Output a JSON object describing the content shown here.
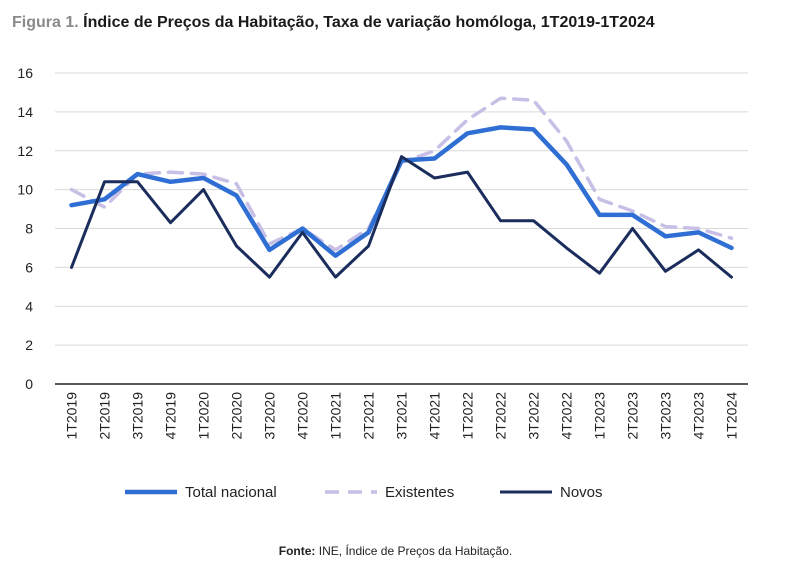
{
  "figure": {
    "label": "Figura 1.",
    "title": "Índice de Preços da Habitação, Taxa de variação homóloga, 1T2019-1T2024"
  },
  "source": {
    "label": "Fonte:",
    "text": "INE, Índice de Preços da Habitação."
  },
  "colors": {
    "total": "#2f6fd4",
    "existentes": "#c8bfe6",
    "novos": "#1b2d5c",
    "grid": "#d9d9d9",
    "axis": "#222222"
  },
  "chart_data": {
    "type": "line",
    "title": "Índice de Preços da Habitação, Taxa de variação homóloga, 1T2019-1T2024",
    "xlabel": "",
    "ylabel": "",
    "ylim": [
      0,
      16
    ],
    "yticks": [
      0,
      2,
      4,
      6,
      8,
      10,
      12,
      14,
      16
    ],
    "grid": true,
    "legend": "bottom",
    "categories": [
      "1T2019",
      "2T2019",
      "3T2019",
      "4T2019",
      "1T2020",
      "2T2020",
      "3T2020",
      "4T2020",
      "1T2021",
      "2T2021",
      "3T2021",
      "4T2021",
      "1T2022",
      "2T2022",
      "3T2022",
      "4T2022",
      "1T2023",
      "2T2023",
      "3T2023",
      "4T2023",
      "1T2024"
    ],
    "series": [
      {
        "name": "Total nacional",
        "style": "solid-thick",
        "values": [
          9.2,
          9.5,
          10.8,
          10.4,
          10.6,
          9.7,
          6.9,
          8.0,
          6.6,
          7.8,
          11.5,
          11.6,
          12.9,
          13.2,
          13.1,
          11.3,
          8.7,
          8.7,
          7.6,
          7.8,
          7.0
        ]
      },
      {
        "name": "Existentes",
        "style": "dashed",
        "values": [
          10.0,
          9.1,
          10.8,
          10.9,
          10.8,
          10.3,
          7.2,
          8.0,
          6.9,
          8.0,
          11.4,
          12.0,
          13.6,
          14.7,
          14.6,
          12.5,
          9.5,
          8.9,
          8.1,
          8.0,
          7.5
        ]
      },
      {
        "name": "Novos",
        "style": "solid",
        "values": [
          6.0,
          10.4,
          10.4,
          8.3,
          10.0,
          7.1,
          5.5,
          7.8,
          5.5,
          7.1,
          11.7,
          10.6,
          10.9,
          8.4,
          8.4,
          7.0,
          5.7,
          8.0,
          5.8,
          6.9,
          5.5
        ]
      }
    ]
  }
}
